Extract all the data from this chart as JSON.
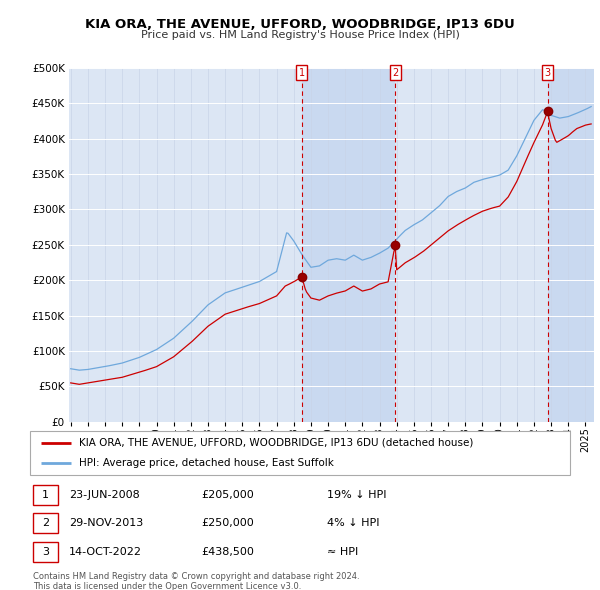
{
  "title": "KIA ORA, THE AVENUE, UFFORD, WOODBRIDGE, IP13 6DU",
  "subtitle": "Price paid vs. HM Land Registry's House Price Index (HPI)",
  "legend_line1": "KIA ORA, THE AVENUE, UFFORD, WOODBRIDGE, IP13 6DU (detached house)",
  "legend_line2": "HPI: Average price, detached house, East Suffolk",
  "footer1": "Contains HM Land Registry data © Crown copyright and database right 2024.",
  "footer2": "This data is licensed under the Open Government Licence v3.0.",
  "transactions": [
    {
      "num": 1,
      "date": "23-JUN-2008",
      "price": 205000,
      "rel": "19% ↓ HPI"
    },
    {
      "num": 2,
      "date": "29-NOV-2013",
      "price": 250000,
      "rel": "4% ↓ HPI"
    },
    {
      "num": 3,
      "date": "14-OCT-2022",
      "price": 438500,
      "rel": "≈ HPI"
    }
  ],
  "transaction_dates_decimal": [
    2008.47,
    2013.91,
    2022.79
  ],
  "transaction_prices": [
    205000,
    250000,
    438500
  ],
  "hpi_color": "#6fa8dc",
  "price_color": "#cc0000",
  "bg_color": "#dce6f4",
  "shade_color": "#c9d9f0",
  "ylim": [
    0,
    500000
  ],
  "yticks": [
    0,
    50000,
    100000,
    150000,
    200000,
    250000,
    300000,
    350000,
    400000,
    450000,
    500000
  ],
  "xlim_start": 1995.0,
  "xlim_end": 2025.5
}
